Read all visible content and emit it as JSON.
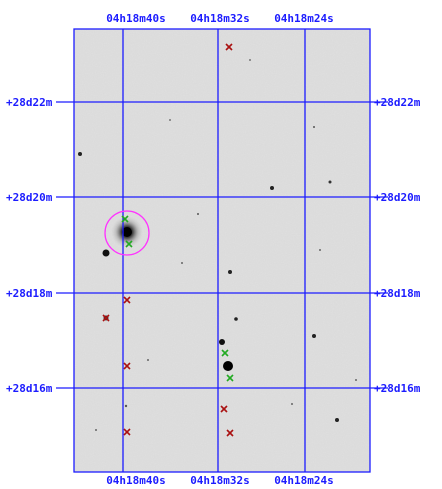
{
  "chart": {
    "ra_top_labels": [
      "04h18m40s",
      "04h18m32s",
      "04h18m24s"
    ],
    "ra_bottom_labels": [
      "04h18m40s",
      "04h18m32s",
      "04h18m24s"
    ],
    "dec_left_labels": [
      "+28d22m",
      "+28d20m",
      "+28d18m",
      "+28d16m"
    ],
    "dec_right_labels": [
      "+28d22m",
      "+28d20m",
      "+28d18m",
      "+28d16m"
    ],
    "grid_color": "#1c1cff",
    "label_color": "#1c1cff",
    "target_circle_color": "#ff33ff",
    "green_marker_color": "#22aa22",
    "red_marker_color": "#aa1111",
    "sky_color": "#d9d9d9"
  }
}
